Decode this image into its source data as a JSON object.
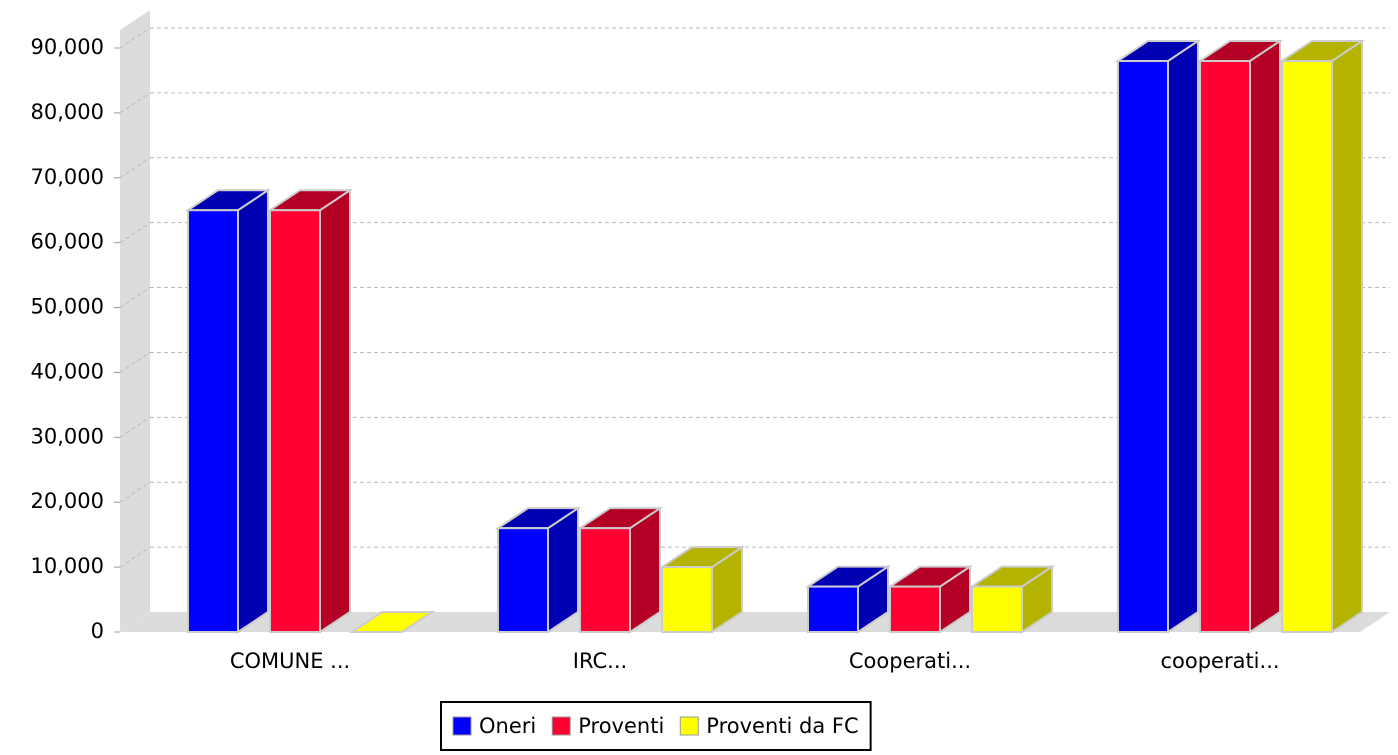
{
  "chart_data": {
    "type": "bar3d",
    "categories": [
      "COMUNE ...",
      "IRC...",
      "Cooperati...",
      "cooperati..."
    ],
    "series": [
      {
        "name": "Oneri",
        "color": "#0000ff",
        "values": [
          65000,
          16000,
          7000,
          88000
        ]
      },
      {
        "name": "Proventi",
        "color": "#ff0033",
        "values": [
          65000,
          16000,
          7000,
          88000
        ]
      },
      {
        "name": "Proventi da FC",
        "color": "#ffff00",
        "values": [
          0,
          10000,
          7000,
          88000
        ]
      }
    ],
    "ylim": [
      0,
      90000
    ],
    "yticks": [
      0,
      {
        "value": 10000,
        "label": "10,000"
      },
      {
        "value": 20000,
        "label": "20,000"
      },
      {
        "value": 30000,
        "label": "30,000"
      },
      {
        "value": 40000,
        "label": "40,000"
      },
      {
        "value": 50000,
        "label": "50,000"
      },
      {
        "value": 60000,
        "label": "60,000"
      },
      {
        "value": 70000,
        "label": "70,000"
      },
      {
        "value": 80000,
        "label": "80,000"
      },
      {
        "value": 90000,
        "label": "90,000"
      }
    ],
    "grid": true,
    "legend": "bottom"
  }
}
